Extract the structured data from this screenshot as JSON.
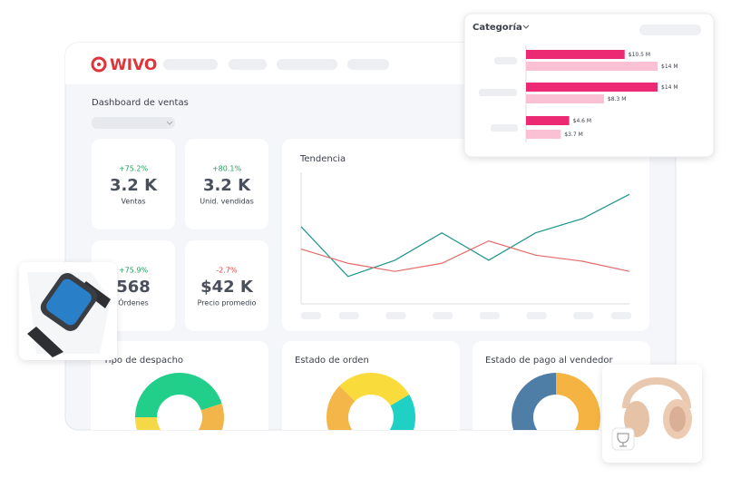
{
  "logo": "WIVO",
  "dashboard": {
    "title": "Dashboard de ventas"
  },
  "kpis": [
    {
      "change": "+75.2%",
      "change_color": "#1f9d5a",
      "value": "3.2 K",
      "label": "Ventas"
    },
    {
      "change": "+80.1%",
      "change_color": "#1f9d5a",
      "value": "3.2 K",
      "label": "Unid. vendidas"
    },
    {
      "change": "+75.9%",
      "change_color": "#1f9d5a",
      "value": "568",
      "label": "Órdenes"
    },
    {
      "change": "-2.7%",
      "change_color": "#e0443e",
      "value": "$42 K",
      "label": "Precio promedio"
    }
  ],
  "trend": {
    "title": "Tendencia",
    "series": [
      {
        "color": "#1a9688",
        "values": [
          76,
          27,
          43,
          70,
          43,
          70,
          84,
          108
        ]
      },
      {
        "color": "#e46a6a",
        "values": [
          54,
          40,
          32,
          40,
          62,
          48,
          42,
          32
        ]
      }
    ]
  },
  "donuts": [
    {
      "title": "Tipo de despacho",
      "segments": [
        {
          "color": "#22cf8a",
          "value": 45
        },
        {
          "color": "#f2b54a",
          "value": 30
        },
        {
          "color": "#f5d845",
          "value": 25
        }
      ]
    },
    {
      "title": "Estado de orden",
      "segments": [
        {
          "color": "#f9dc3c",
          "value": 29
        },
        {
          "color": "#1fd1c4",
          "value": 33
        },
        {
          "color": "#f4b649",
          "value": 38
        }
      ]
    },
    {
      "title": "Estado de pago al vendedor",
      "segments": [
        {
          "color": "#f5b341",
          "value": 50
        },
        {
          "color": "#4e7da6",
          "value": 50
        }
      ]
    }
  ],
  "category_popup": {
    "title": "Categoría",
    "series": [
      {
        "color": "#ec2a73",
        "values": [
          10.5,
          14,
          4.6
        ],
        "value_labels": [
          "$10.5 M",
          "$14 M",
          "$4.6 M"
        ]
      },
      {
        "color": "#f9c1d3",
        "values": [
          14,
          8.3,
          3.7
        ],
        "value_labels": [
          "$14 M",
          "$8.3 M",
          "$3.7 M"
        ]
      }
    ]
  }
}
